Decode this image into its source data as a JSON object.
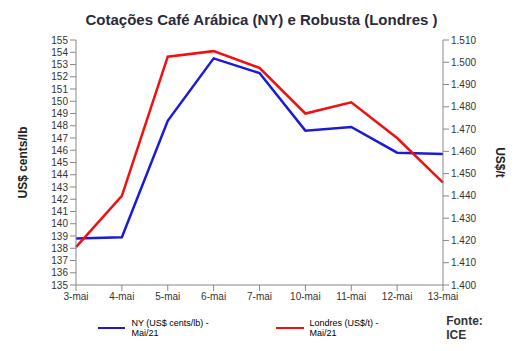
{
  "chart_data": {
    "type": "line",
    "title": "Cotações Café Arábica (NY) e Robusta (Londres )",
    "categories": [
      "3-mai",
      "4-mai",
      "5-mai",
      "6-mai",
      "7-mai",
      "10-mai",
      "11-mai",
      "12-mai",
      "13-mai"
    ],
    "series": [
      {
        "name": "NY (US$ cents/lb) - Mai/21",
        "color": "#1a1ad8",
        "values": [
          138.8,
          138.9,
          148.4,
          153.5,
          152.3,
          147.6,
          147.9,
          145.8,
          145.7
        ]
      },
      {
        "name": "Londres (US$/t) - Mai/21",
        "color": "#f01010",
        "axis": "y2",
        "values": [
          1417,
          1440,
          1502.5,
          1505,
          1497.5,
          1477,
          1482,
          1466,
          1446
        ]
      }
    ],
    "y_label": "US$ cents/lb",
    "y2_label": "US$/t",
    "ylim": [
      135,
      155
    ],
    "yticks": [
      135,
      136,
      137,
      138,
      139,
      140,
      141,
      142,
      143,
      144,
      145,
      146,
      147,
      148,
      149,
      150,
      151,
      152,
      153,
      154,
      155
    ],
    "y2lim": [
      1400,
      1510
    ],
    "y2ticks": [
      {
        "value": 1400,
        "label": "1.400"
      },
      {
        "value": 1410,
        "label": "1.410"
      },
      {
        "value": 1420,
        "label": "1.420"
      },
      {
        "value": 1430,
        "label": "1.430"
      },
      {
        "value": 1440,
        "label": "1.440"
      },
      {
        "value": 1450,
        "label": "1.450"
      },
      {
        "value": 1460,
        "label": "1.460"
      },
      {
        "value": 1470,
        "label": "1.470"
      },
      {
        "value": 1480,
        "label": "1.480"
      },
      {
        "value": 1490,
        "label": "1.490"
      },
      {
        "value": 1500,
        "label": "1.500"
      },
      {
        "value": 1510,
        "label": "1.510"
      }
    ],
    "source": "Fonte: ICE",
    "legend": "bottom",
    "grid": false
  }
}
